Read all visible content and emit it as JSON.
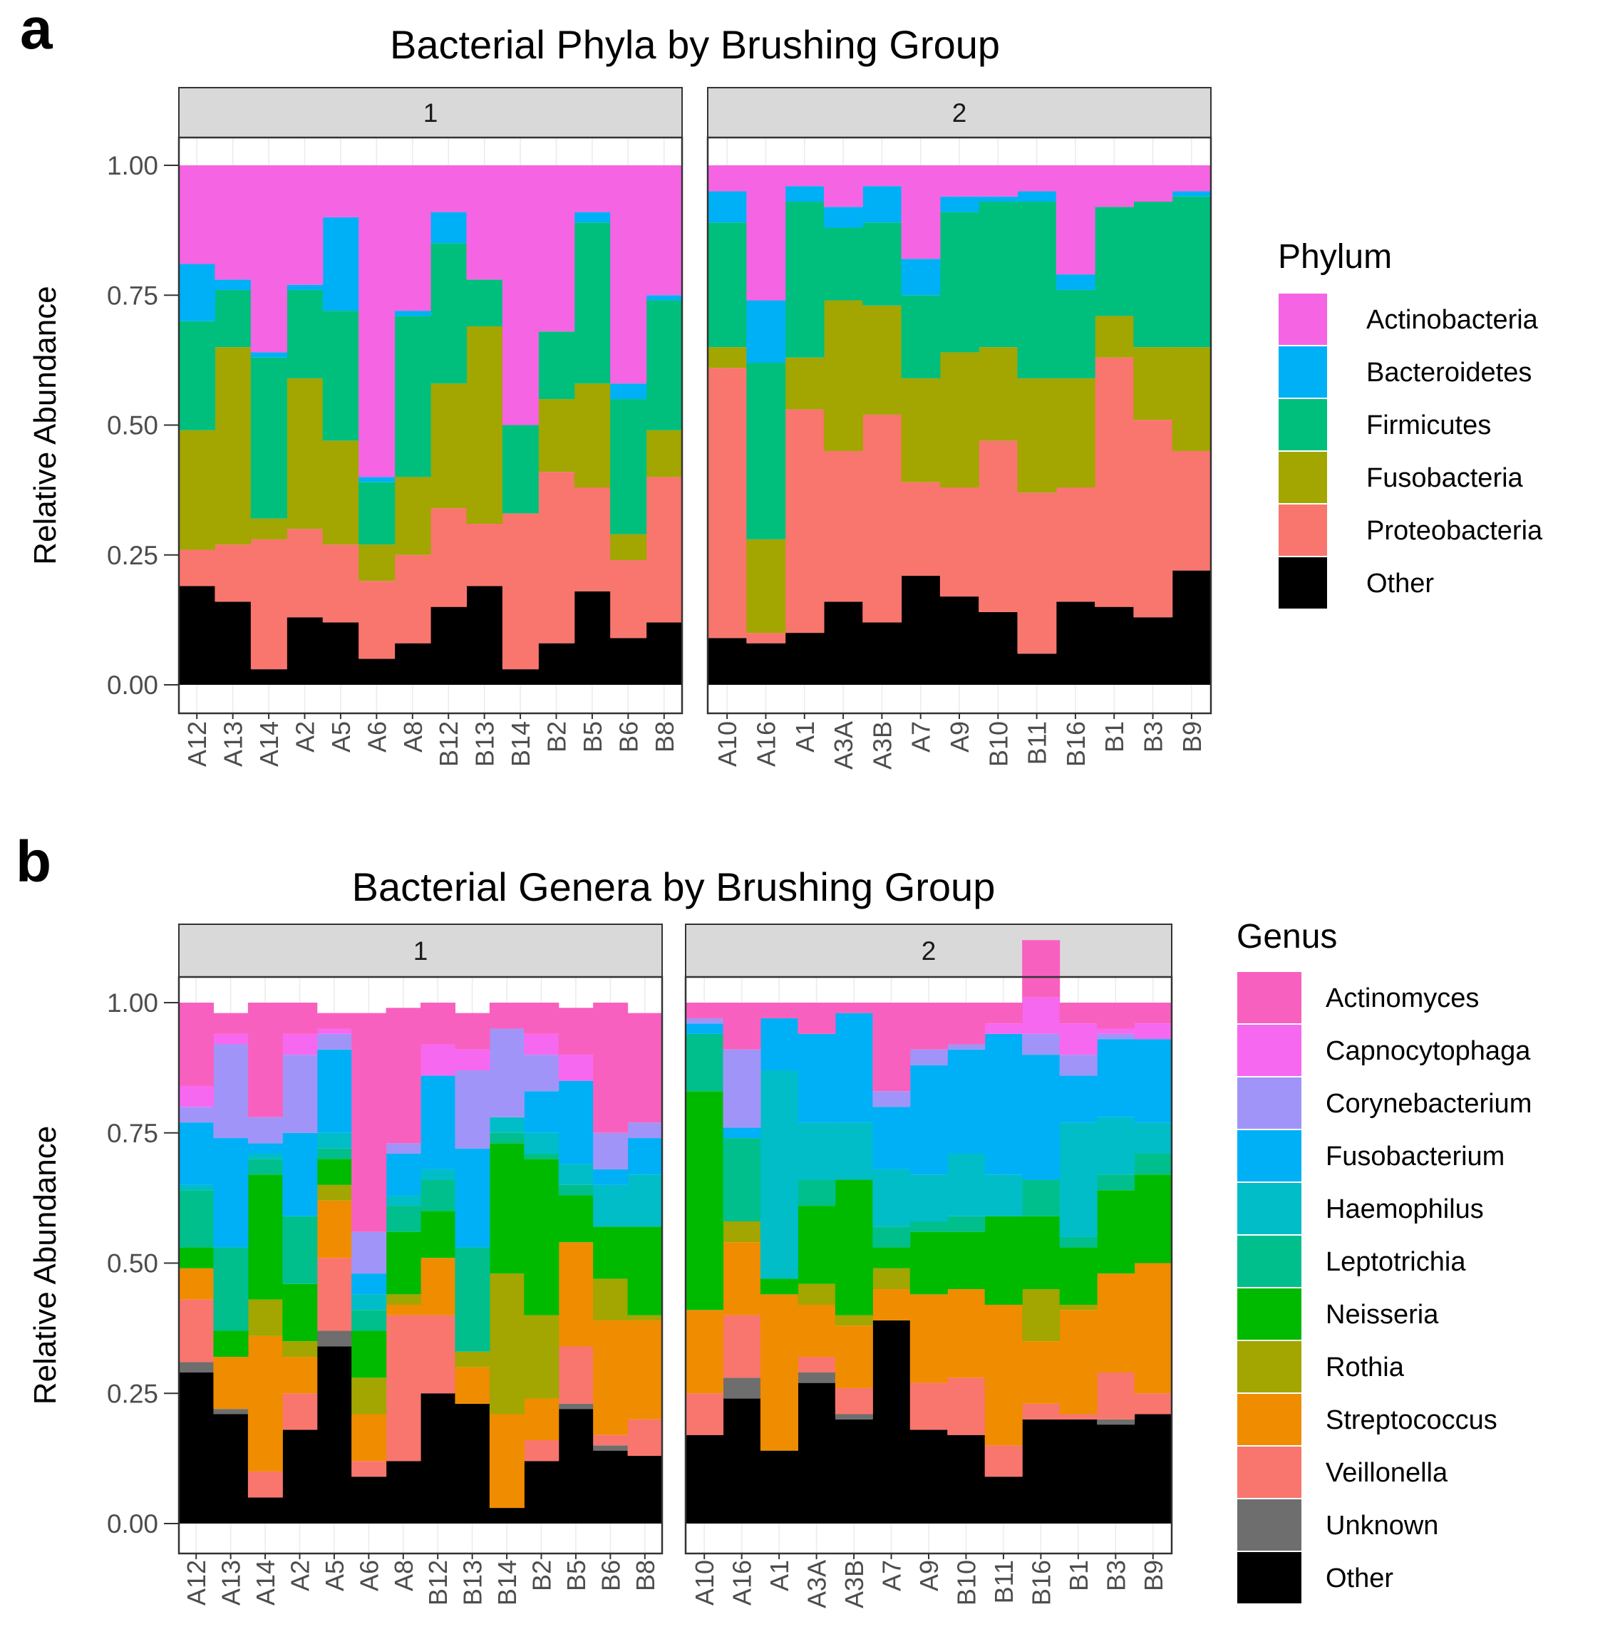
{
  "colors": {
    "Actinobacteria": "#F564E3",
    "Bacteroidetes": "#00B0F6",
    "Firmicutes": "#00BF7D",
    "Fusobacteria": "#A3A500",
    "Proteobacteria": "#F8766D",
    "Actinomyces": "#F860C0",
    "Capnocytophaga": "#F768F0",
    "Corynebacterium": "#A194F8",
    "Fusobacterium": "#00B0F6",
    "Haemophilus": "#00BDC8",
    "Leptotrichia": "#00BF8C",
    "Neisseria": "#00BA00",
    "Rothia": "#A3A500",
    "Streptococcus": "#F08C00",
    "Veillonella": "#F8766D",
    "Unknown": "#6E6E6E",
    "Other": "#000000"
  },
  "chart_data": [
    {
      "type": "bar",
      "stacked": true,
      "panel_label": "a",
      "title": "Bacterial Phyla by Brushing Group",
      "xlabel": "",
      "ylabel": "Relative Abundance",
      "ylim": [
        0,
        1.1
      ],
      "yticks": [
        "0.00",
        "0.25",
        "0.50",
        "0.75",
        "1.00"
      ],
      "legend_title": "Phylum",
      "legend_order": [
        "Actinobacteria",
        "Bacteroidetes",
        "Firmicutes",
        "Fusobacteria",
        "Proteobacteria",
        "Other"
      ],
      "stack_order": [
        "Other",
        "Proteobacteria",
        "Fusobacteria",
        "Firmicutes",
        "Bacteroidetes",
        "Actinobacteria"
      ],
      "facets": [
        {
          "label": "1",
          "categories": [
            "A12",
            "A13",
            "A14",
            "A2",
            "A5",
            "A6",
            "A8",
            "B12",
            "B13",
            "B14",
            "B2",
            "B5",
            "B6",
            "B8"
          ],
          "series": [
            {
              "name": "Other",
              "values": [
                0.19,
                0.16,
                0.03,
                0.13,
                0.12,
                0.05,
                0.08,
                0.15,
                0.19,
                0.03,
                0.08,
                0.18,
                0.09,
                0.12
              ]
            },
            {
              "name": "Proteobacteria",
              "values": [
                0.07,
                0.11,
                0.25,
                0.17,
                0.15,
                0.15,
                0.17,
                0.19,
                0.12,
                0.3,
                0.33,
                0.2,
                0.15,
                0.28
              ]
            },
            {
              "name": "Fusobacteria",
              "values": [
                0.23,
                0.38,
                0.04,
                0.29,
                0.2,
                0.07,
                0.15,
                0.24,
                0.38,
                0.0,
                0.14,
                0.2,
                0.05,
                0.09
              ]
            },
            {
              "name": "Firmicutes",
              "values": [
                0.21,
                0.11,
                0.31,
                0.17,
                0.25,
                0.12,
                0.31,
                0.27,
                0.09,
                0.17,
                0.13,
                0.31,
                0.26,
                0.25
              ]
            },
            {
              "name": "Bacteroidetes",
              "values": [
                0.11,
                0.02,
                0.01,
                0.01,
                0.18,
                0.01,
                0.01,
                0.06,
                0.0,
                0.0,
                0.0,
                0.02,
                0.03,
                0.01
              ]
            },
            {
              "name": "Actinobacteria",
              "values": [
                0.19,
                0.22,
                0.36,
                0.23,
                0.1,
                0.6,
                0.28,
                0.09,
                0.22,
                0.5,
                0.32,
                0.09,
                0.42,
                0.25
              ]
            }
          ]
        },
        {
          "label": "2",
          "categories": [
            "A10",
            "A16",
            "A1",
            "A3A",
            "A3B",
            "A7",
            "A9",
            "B10",
            "B11",
            "B16",
            "B1",
            "B3",
            "B9"
          ],
          "series": [
            {
              "name": "Other",
              "values": [
                0.09,
                0.08,
                0.1,
                0.16,
                0.12,
                0.21,
                0.17,
                0.14,
                0.06,
                0.16,
                0.15,
                0.13,
                0.22
              ]
            },
            {
              "name": "Proteobacteria",
              "values": [
                0.52,
                0.02,
                0.43,
                0.29,
                0.4,
                0.18,
                0.21,
                0.33,
                0.31,
                0.22,
                0.48,
                0.38,
                0.23
              ]
            },
            {
              "name": "Fusobacteria",
              "values": [
                0.04,
                0.18,
                0.1,
                0.29,
                0.21,
                0.2,
                0.26,
                0.18,
                0.22,
                0.21,
                0.08,
                0.14,
                0.2
              ]
            },
            {
              "name": "Firmicutes",
              "values": [
                0.24,
                0.34,
                0.3,
                0.14,
                0.16,
                0.16,
                0.27,
                0.28,
                0.34,
                0.17,
                0.21,
                0.28,
                0.29
              ]
            },
            {
              "name": "Bacteroidetes",
              "values": [
                0.06,
                0.12,
                0.03,
                0.04,
                0.07,
                0.07,
                0.03,
                0.01,
                0.02,
                0.03,
                0.0,
                0.0,
                0.01
              ]
            },
            {
              "name": "Actinobacteria",
              "values": [
                0.05,
                0.26,
                0.04,
                0.08,
                0.04,
                0.18,
                0.06,
                0.06,
                0.05,
                0.21,
                0.08,
                0.07,
                0.05
              ]
            }
          ]
        }
      ]
    },
    {
      "type": "bar",
      "stacked": true,
      "panel_label": "b",
      "title": "Bacterial Genera by Brushing Group",
      "xlabel": "",
      "ylabel": "Relative Abundance",
      "ylim": [
        0,
        1.1
      ],
      "yticks": [
        "0.00",
        "0.25",
        "0.50",
        "0.75",
        "1.00"
      ],
      "legend_title": "Genus",
      "legend_order": [
        "Actinomyces",
        "Capnocytophaga",
        "Corynebacterium",
        "Fusobacterium",
        "Haemophilus",
        "Leptotrichia",
        "Neisseria",
        "Rothia",
        "Streptococcus",
        "Veillonella",
        "Unknown",
        "Other"
      ],
      "stack_order": [
        "Other",
        "Unknown",
        "Veillonella",
        "Streptococcus",
        "Rothia",
        "Neisseria",
        "Leptotrichia",
        "Haemophilus",
        "Fusobacterium",
        "Corynebacterium",
        "Capnocytophaga",
        "Actinomyces"
      ],
      "facets": [
        {
          "label": "1",
          "categories": [
            "A12",
            "A13",
            "A14",
            "A2",
            "A5",
            "A6",
            "A8",
            "B12",
            "B13",
            "B14",
            "B2",
            "B5",
            "B6",
            "B8"
          ],
          "series": [
            {
              "name": "Other",
              "values": [
                0.29,
                0.21,
                0.05,
                0.18,
                0.34,
                0.09,
                0.12,
                0.25,
                0.23,
                0.03,
                0.12,
                0.22,
                0.14,
                0.13
              ]
            },
            {
              "name": "Unknown",
              "values": [
                0.02,
                0.01,
                0.0,
                0.0,
                0.03,
                0.0,
                0.0,
                0.0,
                0.0,
                0.0,
                0.0,
                0.01,
                0.01,
                0.0
              ]
            },
            {
              "name": "Veillonella",
              "values": [
                0.12,
                0.0,
                0.05,
                0.07,
                0.14,
                0.03,
                0.28,
                0.15,
                0.0,
                0.0,
                0.04,
                0.11,
                0.02,
                0.07
              ]
            },
            {
              "name": "Streptococcus",
              "values": [
                0.06,
                0.1,
                0.26,
                0.07,
                0.11,
                0.09,
                0.02,
                0.11,
                0.07,
                0.18,
                0.08,
                0.2,
                0.22,
                0.19
              ]
            },
            {
              "name": "Rothia",
              "values": [
                0.0,
                0.0,
                0.07,
                0.03,
                0.03,
                0.07,
                0.02,
                0.0,
                0.03,
                0.27,
                0.16,
                0.0,
                0.08,
                0.01
              ]
            },
            {
              "name": "Neisseria",
              "values": [
                0.04,
                0.05,
                0.24,
                0.11,
                0.05,
                0.09,
                0.12,
                0.09,
                0.0,
                0.25,
                0.3,
                0.09,
                0.1,
                0.17
              ]
            },
            {
              "name": "Leptotrichia",
              "values": [
                0.11,
                0.16,
                0.03,
                0.13,
                0.02,
                0.04,
                0.05,
                0.06,
                0.2,
                0.02,
                0.01,
                0.02,
                0.0,
                0.0
              ]
            },
            {
              "name": "Haemophilus",
              "values": [
                0.01,
                0.0,
                0.01,
                0.0,
                0.03,
                0.03,
                0.02,
                0.02,
                0.0,
                0.03,
                0.04,
                0.04,
                0.08,
                0.1
              ]
            },
            {
              "name": "Fusobacterium",
              "values": [
                0.12,
                0.21,
                0.02,
                0.16,
                0.16,
                0.04,
                0.08,
                0.18,
                0.19,
                0.0,
                0.08,
                0.16,
                0.03,
                0.07
              ]
            },
            {
              "name": "Corynebacterium",
              "values": [
                0.03,
                0.18,
                0.05,
                0.15,
                0.03,
                0.08,
                0.02,
                0.0,
                0.15,
                0.17,
                0.07,
                0.0,
                0.07,
                0.03
              ]
            },
            {
              "name": "Capnocytophaga",
              "values": [
                0.04,
                0.02,
                0.0,
                0.04,
                0.01,
                0.0,
                0.0,
                0.06,
                0.04,
                0.0,
                0.04,
                0.05,
                0.0,
                0.0
              ]
            },
            {
              "name": "Actinomyces",
              "values": [
                0.16,
                0.04,
                0.22,
                0.06,
                0.03,
                0.42,
                0.26,
                0.08,
                0.07,
                0.05,
                0.06,
                0.09,
                0.25,
                0.21
              ]
            }
          ]
        },
        {
          "label": "2",
          "categories": [
            "A10",
            "A16",
            "A1",
            "A3A",
            "A3B",
            "A7",
            "A9",
            "B10",
            "B11",
            "B16",
            "B1",
            "B3",
            "B9"
          ],
          "series": [
            {
              "name": "Other",
              "values": [
                0.17,
                0.24,
                0.14,
                0.27,
                0.2,
                0.39,
                0.18,
                0.17,
                0.09,
                0.2,
                0.2,
                0.19,
                0.21
              ]
            },
            {
              "name": "Unknown",
              "values": [
                0.0,
                0.04,
                0.0,
                0.02,
                0.01,
                0.0,
                0.0,
                0.0,
                0.0,
                0.0,
                0.0,
                0.01,
                0.0
              ]
            },
            {
              "name": "Veillonella",
              "values": [
                0.08,
                0.12,
                0.0,
                0.03,
                0.05,
                0.0,
                0.09,
                0.11,
                0.06,
                0.03,
                0.01,
                0.09,
                0.04
              ]
            },
            {
              "name": "Streptococcus",
              "values": [
                0.16,
                0.14,
                0.3,
                0.1,
                0.12,
                0.06,
                0.17,
                0.17,
                0.27,
                0.12,
                0.2,
                0.19,
                0.25
              ]
            },
            {
              "name": "Rothia",
              "values": [
                0.0,
                0.04,
                0.0,
                0.04,
                0.02,
                0.04,
                0.0,
                0.0,
                0.0,
                0.1,
                0.01,
                0.0,
                0.0
              ]
            },
            {
              "name": "Neisseria",
              "values": [
                0.42,
                0.0,
                0.03,
                0.15,
                0.26,
                0.04,
                0.12,
                0.11,
                0.17,
                0.14,
                0.11,
                0.16,
                0.17
              ]
            },
            {
              "name": "Leptotrichia",
              "values": [
                0.11,
                0.16,
                0.0,
                0.05,
                0.0,
                0.04,
                0.02,
                0.03,
                0.0,
                0.07,
                0.02,
                0.03,
                0.04
              ]
            },
            {
              "name": "Haemophilus",
              "values": [
                0.0,
                0.0,
                0.4,
                0.11,
                0.11,
                0.11,
                0.09,
                0.12,
                0.08,
                0.0,
                0.22,
                0.11,
                0.06
              ]
            },
            {
              "name": "Fusobacterium",
              "values": [
                0.02,
                0.02,
                0.1,
                0.17,
                0.21,
                0.12,
                0.21,
                0.2,
                0.27,
                0.24,
                0.09,
                0.15,
                0.16
              ]
            },
            {
              "name": "Corynebacterium",
              "values": [
                0.01,
                0.15,
                0.0,
                0.0,
                0.0,
                0.03,
                0.03,
                0.01,
                0.0,
                0.04,
                0.04,
                0.01,
                0.0
              ]
            },
            {
              "name": "Capnocytophaga",
              "values": [
                0.0,
                0.0,
                0.0,
                0.0,
                0.0,
                0.0,
                0.0,
                0.0,
                0.02,
                0.07,
                0.06,
                0.01,
                0.03
              ]
            },
            {
              "name": "Actinomyces",
              "values": [
                0.03,
                0.09,
                0.03,
                0.06,
                0.02,
                0.17,
                0.09,
                0.08,
                0.04,
                0.11,
                0.04,
                0.05,
                0.04
              ]
            }
          ]
        }
      ]
    }
  ]
}
